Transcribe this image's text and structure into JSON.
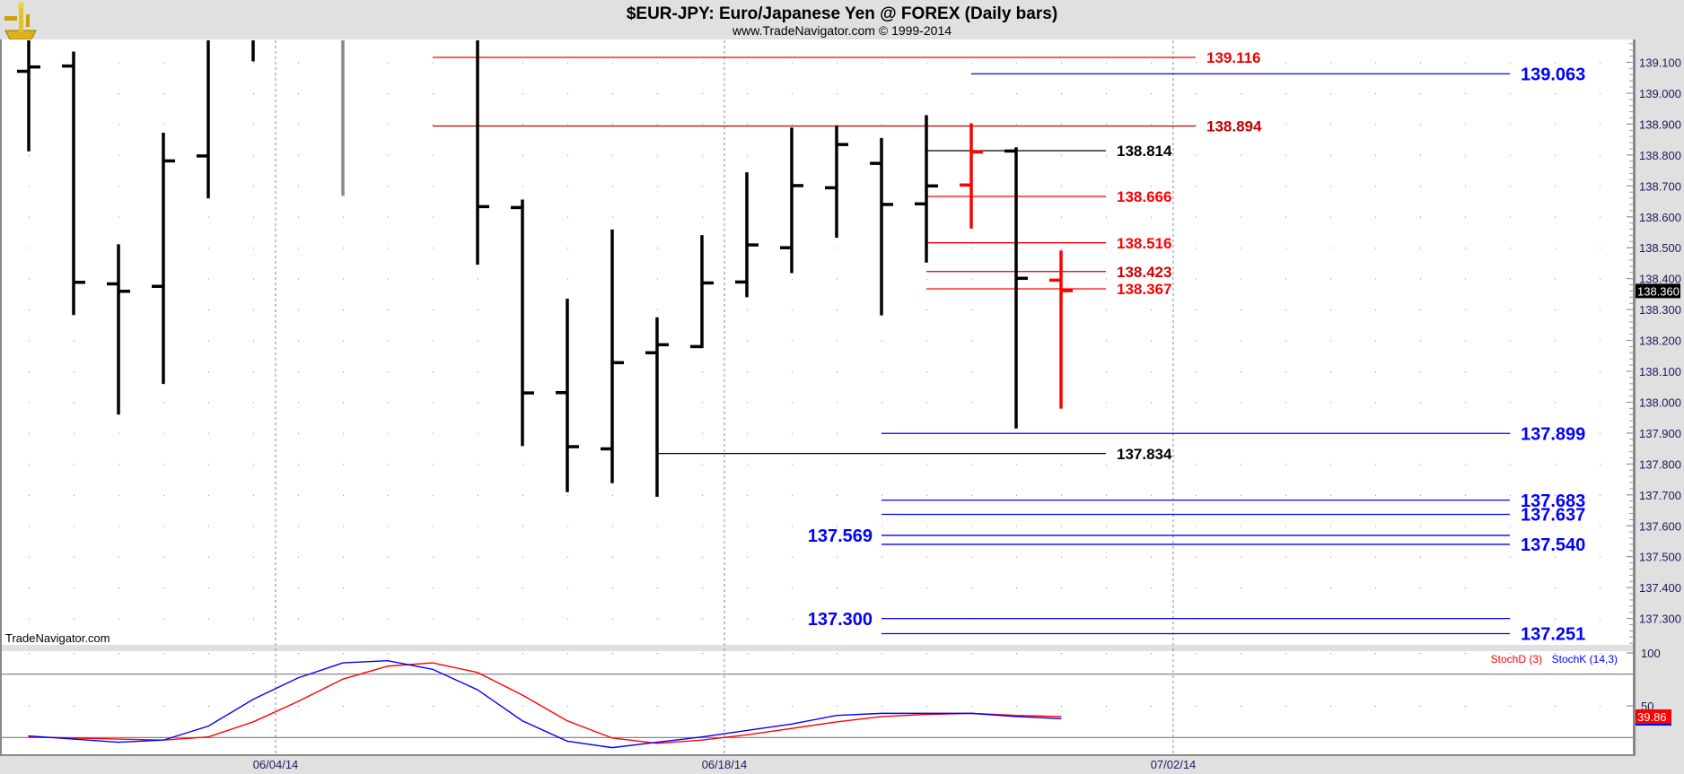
{
  "header": {
    "title": "$EUR-JPY:  Euro/Japanese Yen @ FOREX  (Daily bars)",
    "subtitle": "www.TradeNavigator.com © 1999-2014",
    "logo_icon": "sextant-icon"
  },
  "watermark": "TradeNavigator.com",
  "colors": {
    "up_bar": "#000000",
    "highlight_bar": "#ff0000",
    "muted_bar": "#888888",
    "stochD": "#ff0000",
    "stochK": "#0000ff",
    "support": "#0000ff",
    "resistance": "#ee0000"
  },
  "chart_data": [
    {
      "type": "ohlc",
      "title": "$EUR-JPY:  Euro/Japanese Yen @ FOREX  (Daily bars)",
      "ylim": [
        137.2,
        139.2
      ],
      "y_ticks": [
        "139.100",
        "139.000",
        "138.900",
        "138.800",
        "138.700",
        "138.600",
        "138.500",
        "138.400",
        "138.300",
        "138.200",
        "138.100",
        "138.000",
        "137.900",
        "137.800",
        "137.700",
        "137.600",
        "137.500",
        "137.400",
        "137.300"
      ],
      "last_price": "138.360",
      "x_ticks": [
        {
          "label": "06/04/14",
          "at": 5.5
        },
        {
          "label": "06/18/14",
          "at": 15.5
        },
        {
          "label": "07/02/14",
          "at": 25.5
        }
      ],
      "grid": "dotted",
      "note_null": "null = beyond visible range",
      "bars": [
        {
          "i": 0,
          "open": 139.071,
          "high": null,
          "low": 138.812,
          "close": 139.085,
          "color": "black"
        },
        {
          "i": 1,
          "open": 139.088,
          "high": 139.135,
          "low": 138.282,
          "close": 138.388,
          "color": "black"
        },
        {
          "i": 2,
          "open": 138.383,
          "high": 138.511,
          "low": 137.96,
          "close": 138.359,
          "color": "black"
        },
        {
          "i": 3,
          "open": 138.375,
          "high": 138.872,
          "low": 138.059,
          "close": 138.781,
          "color": "black"
        },
        {
          "i": 4,
          "open": 138.797,
          "high": null,
          "low": 138.66,
          "close": null,
          "color": "black"
        },
        {
          "i": 5,
          "open": null,
          "high": null,
          "low": 139.103,
          "close": null,
          "color": "black"
        },
        {
          "i": 7,
          "open": null,
          "high": null,
          "low": 138.668,
          "close": null,
          "color": "gray"
        },
        {
          "i": 10,
          "open": null,
          "high": null,
          "low": 138.445,
          "close": 138.633,
          "color": "black"
        },
        {
          "i": 11,
          "open": 138.63,
          "high": 138.656,
          "low": 137.858,
          "close": 138.03,
          "color": "black"
        },
        {
          "i": 12,
          "open": 138.031,
          "high": 138.335,
          "low": 137.709,
          "close": 137.856,
          "color": "black"
        },
        {
          "i": 13,
          "open": 137.849,
          "high": 138.559,
          "low": 137.738,
          "close": 138.128,
          "color": "black"
        },
        {
          "i": 14,
          "open": 138.16,
          "high": 138.275,
          "low": 137.694,
          "close": 138.186,
          "color": "black"
        },
        {
          "i": 15,
          "open": 138.18,
          "high": 138.541,
          "low": 138.175,
          "close": 138.386,
          "color": "black"
        },
        {
          "i": 16,
          "open": 138.389,
          "high": 138.744,
          "low": 138.34,
          "close": 138.509,
          "color": "black"
        },
        {
          "i": 17,
          "open": 138.5,
          "high": 138.889,
          "low": 138.418,
          "close": 138.701,
          "color": "black"
        },
        {
          "i": 18,
          "open": 138.694,
          "high": 138.895,
          "low": 138.532,
          "close": 138.834,
          "color": "black"
        },
        {
          "i": 19,
          "open": 138.773,
          "high": 138.855,
          "low": 138.281,
          "close": 138.64,
          "color": "black"
        },
        {
          "i": 20,
          "open": 138.642,
          "high": 138.929,
          "low": 138.452,
          "close": 138.7,
          "color": "black"
        },
        {
          "i": 21,
          "open": 138.703,
          "high": 138.903,
          "low": 138.562,
          "close": 138.81,
          "color": "red"
        },
        {
          "i": 22,
          "open": 138.813,
          "high": 138.825,
          "low": 137.915,
          "close": 138.401,
          "color": "black"
        },
        {
          "i": 23,
          "open": 138.395,
          "high": 138.491,
          "low": 137.979,
          "close": 138.361,
          "color": "red"
        }
      ],
      "levels": [
        {
          "label": "139.116",
          "value": 139.116,
          "from": 9,
          "to": 26,
          "color": "#ee0000",
          "side": "right",
          "size": "m"
        },
        {
          "label": "139.063",
          "value": 139.063,
          "from": 21,
          "to": 33,
          "color": "#0000ff",
          "side": "right",
          "size": "l"
        },
        {
          "label": "138.894",
          "value": 138.894,
          "from": 9,
          "to": 26,
          "color": "#c00000",
          "side": "right",
          "size": "m"
        },
        {
          "label": "138.814",
          "value": 138.814,
          "from": 20,
          "to": 24,
          "color": "#000000",
          "side": "right",
          "size": "m"
        },
        {
          "label": "138.666",
          "value": 138.666,
          "from": 20,
          "to": 24,
          "color": "#ff0000",
          "side": "right",
          "size": "m"
        },
        {
          "label": "138.516",
          "value": 138.516,
          "from": 20,
          "to": 24,
          "color": "#ff0000",
          "side": "right",
          "size": "m"
        },
        {
          "label": "138.423",
          "value": 138.423,
          "from": 20,
          "to": 24,
          "color": "#d00000",
          "side": "right",
          "size": "m"
        },
        {
          "label": "138.367",
          "value": 138.367,
          "from": 20,
          "to": 24,
          "color": "#ff0000",
          "side": "right",
          "size": "m"
        },
        {
          "label": "137.899",
          "value": 137.899,
          "from": 19,
          "to": 33,
          "color": "#0000ff",
          "side": "right",
          "size": "l"
        },
        {
          "label": "137.834",
          "value": 137.834,
          "from": 14,
          "to": 24,
          "color": "#000000",
          "side": "right",
          "size": "m"
        },
        {
          "label": "137.683",
          "value": 137.683,
          "from": 19,
          "to": 33,
          "color": "#0000ff",
          "side": "right",
          "size": "l"
        },
        {
          "label": "137.637",
          "value": 137.637,
          "from": 19,
          "to": 33,
          "color": "#0000ff",
          "side": "right",
          "size": "l"
        },
        {
          "label": "137.569",
          "value": 137.569,
          "from": 19,
          "to": 33,
          "color": "#0000ff",
          "side": "left",
          "size": "l"
        },
        {
          "label": "137.540",
          "value": 137.54,
          "from": 19,
          "to": 33,
          "color": "#0000ff",
          "side": "right",
          "size": "l"
        },
        {
          "label": "137.300",
          "value": 137.3,
          "from": 19,
          "to": 33,
          "color": "#0000ff",
          "side": "left",
          "size": "l"
        },
        {
          "label": "137.251",
          "value": 137.251,
          "from": 19,
          "to": 33,
          "color": "#0000ff",
          "side": "right",
          "size": "l"
        }
      ]
    },
    {
      "type": "line",
      "ylim": [
        0,
        100
      ],
      "y_ticks": [
        "100",
        "50"
      ],
      "ref_lines": [
        80,
        20
      ],
      "last_value": "39.86",
      "legend": [
        "StochD (3)",
        "StochK (14,3)"
      ],
      "series": [
        {
          "name": "StochD (3)",
          "color": "#ff0000",
          "values": [
            20.6,
            19.6,
            18.6,
            17.6,
            20.6,
            34.8,
            54.1,
            75.3,
            87.5,
            90.6,
            81.5,
            60.2,
            35.8,
            19.6,
            14.6,
            17.6,
            22.6,
            28.7,
            34.8,
            39.9,
            41.9,
            42.9,
            40.9,
            39.86
          ]
        },
        {
          "name": "StochK (14,3)",
          "color": "#0000ff",
          "values": [
            21.6,
            18.6,
            15.6,
            17.6,
            30.8,
            56.1,
            76.4,
            90.6,
            92.6,
            84.5,
            65.2,
            35.8,
            16.6,
            10.5,
            15.6,
            20.6,
            26.7,
            32.8,
            40.9,
            42.9,
            42.9,
            42.9,
            39.9,
            37.9
          ]
        }
      ]
    }
  ]
}
